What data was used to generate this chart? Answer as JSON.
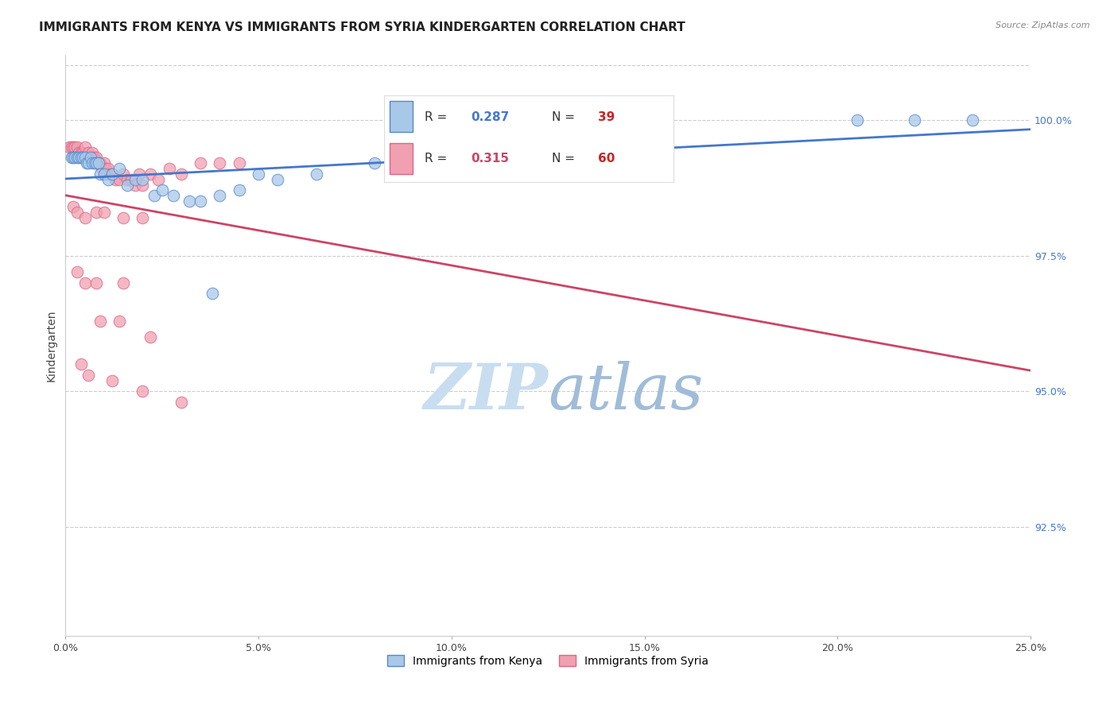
{
  "title": "IMMIGRANTS FROM KENYA VS IMMIGRANTS FROM SYRIA KINDERGARTEN CORRELATION CHART",
  "source": "Source: ZipAtlas.com",
  "xlabel": "",
  "ylabel": "Kindergarten",
  "xlim": [
    0.0,
    25.0
  ],
  "ylim": [
    90.5,
    101.2
  ],
  "yticks": [
    92.5,
    95.0,
    97.5,
    100.0
  ],
  "ytick_labels": [
    "92.5%",
    "95.0%",
    "97.5%",
    "100.0%"
  ],
  "xticks": [
    0.0,
    5.0,
    10.0,
    15.0,
    20.0,
    25.0
  ],
  "xtick_labels": [
    "0.0%",
    "5.0%",
    "10.0%",
    "15.0%",
    "20.0%",
    "25.0%"
  ],
  "kenya_color": "#a8c8e8",
  "syria_color": "#f0a0b0",
  "kenya_edge_color": "#5588cc",
  "syria_edge_color": "#dd6688",
  "kenya_line_color": "#4477cc",
  "syria_line_color": "#cc4466",
  "kenya_R": 0.287,
  "kenya_N": 39,
  "syria_R": 0.315,
  "syria_N": 60,
  "kenya_x": [
    0.15,
    0.2,
    0.25,
    0.3,
    0.35,
    0.4,
    0.45,
    0.5,
    0.55,
    0.6,
    0.65,
    0.7,
    0.75,
    0.8,
    0.85,
    0.9,
    1.0,
    1.1,
    1.2,
    1.4,
    1.6,
    1.8,
    2.0,
    2.3,
    2.5,
    2.8,
    3.2,
    3.5,
    4.0,
    4.5,
    5.5,
    6.5,
    8.0,
    9.5,
    20.5,
    22.0,
    23.5,
    5.0,
    3.8
  ],
  "kenya_y": [
    99.3,
    99.3,
    99.3,
    99.3,
    99.3,
    99.3,
    99.3,
    99.3,
    99.2,
    99.2,
    99.3,
    99.2,
    99.2,
    99.2,
    99.2,
    99.0,
    99.0,
    98.9,
    99.0,
    99.1,
    98.8,
    98.9,
    98.9,
    98.6,
    98.7,
    98.6,
    98.5,
    98.5,
    98.6,
    98.7,
    98.9,
    99.0,
    99.2,
    99.3,
    100.0,
    100.0,
    100.0,
    99.0,
    96.8
  ],
  "syria_x": [
    0.1,
    0.15,
    0.2,
    0.25,
    0.3,
    0.35,
    0.4,
    0.45,
    0.5,
    0.5,
    0.55,
    0.6,
    0.65,
    0.7,
    0.7,
    0.75,
    0.8,
    0.85,
    0.9,
    0.95,
    1.0,
    1.0,
    1.05,
    1.1,
    1.15,
    1.2,
    1.3,
    1.4,
    1.5,
    1.6,
    1.7,
    1.8,
    1.9,
    2.0,
    2.2,
    2.4,
    2.7,
    3.0,
    3.5,
    4.0,
    4.5,
    0.2,
    0.3,
    0.5,
    0.8,
    1.0,
    1.5,
    2.0,
    0.3,
    0.5,
    0.8,
    1.5,
    0.9,
    1.4,
    2.2,
    0.4,
    0.6,
    1.2,
    2.0,
    3.0
  ],
  "syria_y": [
    99.5,
    99.5,
    99.5,
    99.5,
    99.5,
    99.4,
    99.4,
    99.4,
    99.5,
    99.3,
    99.3,
    99.4,
    99.3,
    99.4,
    99.3,
    99.3,
    99.3,
    99.2,
    99.2,
    99.1,
    99.2,
    99.0,
    99.1,
    99.1,
    99.0,
    99.0,
    98.9,
    98.9,
    99.0,
    98.9,
    98.9,
    98.8,
    99.0,
    98.8,
    99.0,
    98.9,
    99.1,
    99.0,
    99.2,
    99.2,
    99.2,
    98.4,
    98.3,
    98.2,
    98.3,
    98.3,
    98.2,
    98.2,
    97.2,
    97.0,
    97.0,
    97.0,
    96.3,
    96.3,
    96.0,
    95.5,
    95.3,
    95.2,
    95.0,
    94.8
  ],
  "background_color": "#ffffff",
  "grid_color": "#cccccc",
  "title_fontsize": 11,
  "axis_label_fontsize": 10,
  "tick_fontsize": 9,
  "legend_fontsize": 11,
  "watermark_zip_color": "#c8ddf0",
  "watermark_atlas_color": "#a0bcd8",
  "watermark_fontsize": 58
}
